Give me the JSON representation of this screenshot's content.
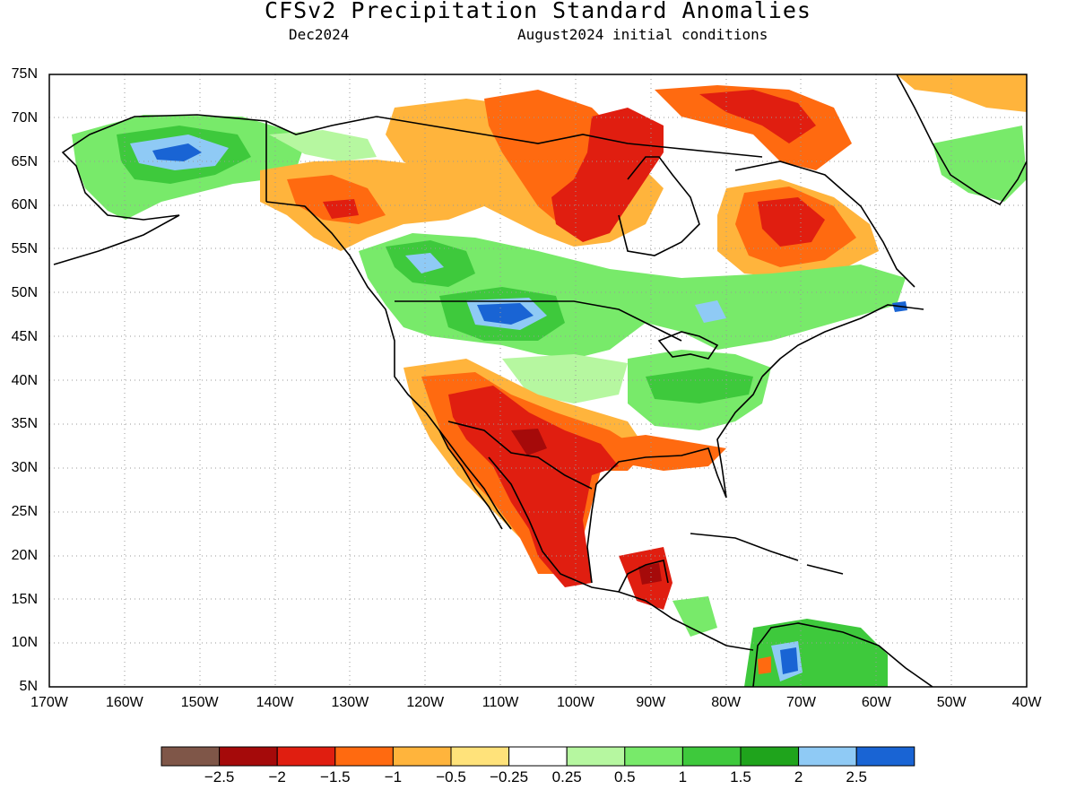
{
  "title": "CFSv2 Precipitation Standard Anomalies",
  "valid_month": "Dec2024",
  "initial_conditions": "August2024 initial conditions",
  "latitude_labels": [
    "75N",
    "70N",
    "65N",
    "60N",
    "55N",
    "50N",
    "45N",
    "40N",
    "35N",
    "30N",
    "25N",
    "20N",
    "15N",
    "10N",
    "5N"
  ],
  "longitude_labels": [
    "170W",
    "160W",
    "150W",
    "140W",
    "130W",
    "120W",
    "110W",
    "100W",
    "90W",
    "80W",
    "70W",
    "60W",
    "50W",
    "40W"
  ],
  "colorbar": {
    "labels": [
      "-2.5",
      "-2",
      "-1.5",
      "-1",
      "-0.5",
      "-0.25",
      "0.25",
      "0.5",
      "1",
      "1.5",
      "2",
      "2.5"
    ],
    "colors": [
      "#7f5648",
      "#a50a0a",
      "#e01e10",
      "#ff6a10",
      "#ffb43c",
      "#ffe27a",
      "#ffffff",
      "#b6f7a0",
      "#78ea6a",
      "#3ec93c",
      "#1fa41c",
      "#8fcaf5",
      "#1964d4"
    ]
  },
  "map_regions": [
    {
      "name": "alaska-wet",
      "color": "#78ea6a"
    },
    {
      "name": "alaska-wet-core",
      "color": "#8fcaf5"
    },
    {
      "name": "yukon-dry",
      "color": "#ffb43c"
    },
    {
      "name": "bc-wet",
      "color": "#78ea6a"
    },
    {
      "name": "montana-wet-core",
      "color": "#1964d4"
    },
    {
      "name": "hudson-dry",
      "color": "#e01e10"
    },
    {
      "name": "labrador-dry",
      "color": "#e01e10"
    },
    {
      "name": "southwest-dry",
      "color": "#e01e10"
    },
    {
      "name": "mexico-dry",
      "color": "#e01e10"
    },
    {
      "name": "great-lakes-wet",
      "color": "#78ea6a"
    },
    {
      "name": "south-america-wet",
      "color": "#1964d4"
    },
    {
      "name": "greenland-dry",
      "color": "#ffb43c"
    }
  ]
}
